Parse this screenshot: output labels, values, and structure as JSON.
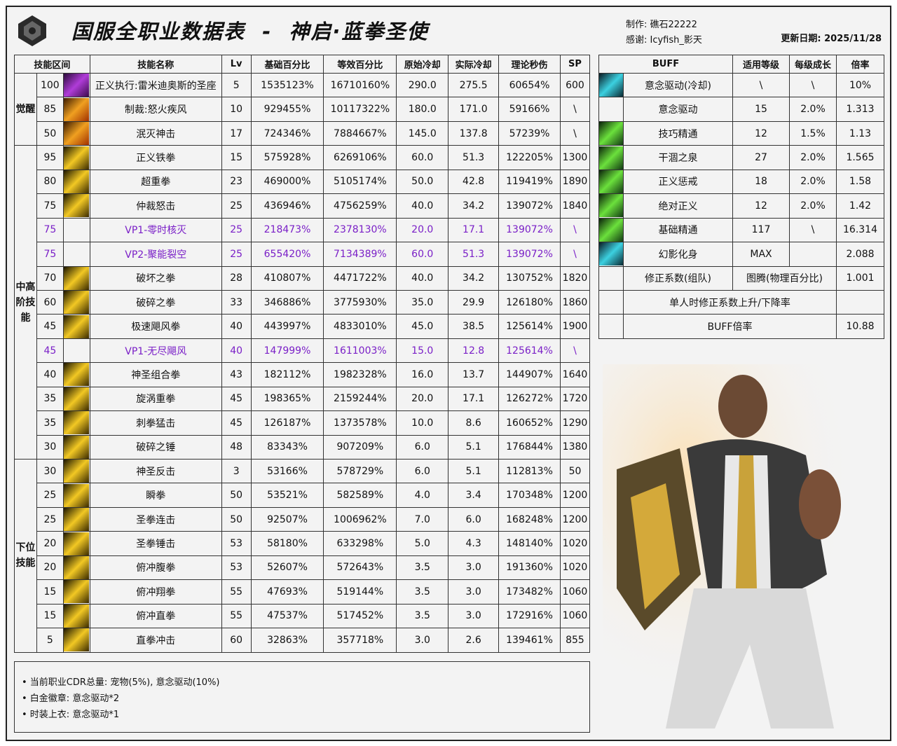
{
  "header": {
    "title": "国服全职业数据表  -  神启·蓝拳圣使",
    "author": "制作: 礁石22222",
    "thanks": "感谢: Icyfish_影天",
    "updated": "更新日期: 2025/11/28"
  },
  "skill_table": {
    "columns": [
      "技能区间",
      "技能名称",
      "Lv",
      "基础百分比",
      "等效百分比",
      "原始冷却",
      "实际冷却",
      "理论秒伤",
      "SP"
    ],
    "groups": [
      {
        "label": "觉醒",
        "rows": 3
      },
      {
        "label": "中高阶技能",
        "rows": 13
      },
      {
        "label": "下位技能",
        "rows": 9
      }
    ],
    "colors": {
      "vp": "#7a1fc7"
    },
    "rows": [
      {
        "lvl": "100",
        "name": "正义执行:雷米迪奥斯的圣座",
        "lv": "5",
        "base": "1535123%",
        "eq": "16710160%",
        "cd": "290.0",
        "acd": "275.5",
        "dps": "60654%",
        "sp": "600",
        "icon": "purple"
      },
      {
        "lvl": "85",
        "name": "制裁:怒火疾风",
        "lv": "10",
        "base": "929455%",
        "eq": "10117322%",
        "cd": "180.0",
        "acd": "171.0",
        "dps": "59166%",
        "sp": "\\",
        "icon": "orange"
      },
      {
        "lvl": "50",
        "name": "泯灭神击",
        "lv": "17",
        "base": "724346%",
        "eq": "7884667%",
        "cd": "145.0",
        "acd": "137.8",
        "dps": "57239%",
        "sp": "\\",
        "icon": "orange"
      },
      {
        "lvl": "95",
        "name": "正义铁拳",
        "lv": "15",
        "base": "575928%",
        "eq": "6269106%",
        "cd": "60.0",
        "acd": "51.3",
        "dps": "122205%",
        "sp": "1300",
        "icon": "gold"
      },
      {
        "lvl": "80",
        "name": "超重拳",
        "lv": "23",
        "base": "469000%",
        "eq": "5105174%",
        "cd": "50.0",
        "acd": "42.8",
        "dps": "119419%",
        "sp": "1890",
        "icon": "gold"
      },
      {
        "lvl": "75",
        "name": "仲裁怒击",
        "lv": "25",
        "base": "436946%",
        "eq": "4756259%",
        "cd": "40.0",
        "acd": "34.2",
        "dps": "139072%",
        "sp": "1840",
        "icon": "gold"
      },
      {
        "lvl": "75",
        "name": "VP1-零时核灭",
        "lv": "25",
        "base": "218473%",
        "eq": "2378130%",
        "cd": "20.0",
        "acd": "17.1",
        "dps": "139072%",
        "sp": "\\",
        "vp": true
      },
      {
        "lvl": "75",
        "name": "VP2-聚能裂空",
        "lv": "25",
        "base": "655420%",
        "eq": "7134389%",
        "cd": "60.0",
        "acd": "51.3",
        "dps": "139072%",
        "sp": "\\",
        "vp": true
      },
      {
        "lvl": "70",
        "name": "破坏之拳",
        "lv": "28",
        "base": "410807%",
        "eq": "4471722%",
        "cd": "40.0",
        "acd": "34.2",
        "dps": "130752%",
        "sp": "1820",
        "icon": "gold"
      },
      {
        "lvl": "60",
        "name": "破碎之拳",
        "lv": "33",
        "base": "346886%",
        "eq": "3775930%",
        "cd": "35.0",
        "acd": "29.9",
        "dps": "126180%",
        "sp": "1860",
        "icon": "gold"
      },
      {
        "lvl": "45",
        "name": "极速飓风拳",
        "lv": "40",
        "base": "443997%",
        "eq": "4833010%",
        "cd": "45.0",
        "acd": "38.5",
        "dps": "125614%",
        "sp": "1900",
        "icon": "gold"
      },
      {
        "lvl": "45",
        "name": "VP1-无尽飓风",
        "lv": "40",
        "base": "147999%",
        "eq": "1611003%",
        "cd": "15.0",
        "acd": "12.8",
        "dps": "125614%",
        "sp": "\\",
        "vp": true
      },
      {
        "lvl": "40",
        "name": "神圣组合拳",
        "lv": "43",
        "base": "182112%",
        "eq": "1982328%",
        "cd": "16.0",
        "acd": "13.7",
        "dps": "144907%",
        "sp": "1640",
        "icon": "gold"
      },
      {
        "lvl": "35",
        "name": "旋涡重拳",
        "lv": "45",
        "base": "198365%",
        "eq": "2159244%",
        "cd": "20.0",
        "acd": "17.1",
        "dps": "126272%",
        "sp": "1720",
        "icon": "gold"
      },
      {
        "lvl": "35",
        "name": "刺拳猛击",
        "lv": "45",
        "base": "126187%",
        "eq": "1373578%",
        "cd": "10.0",
        "acd": "8.6",
        "dps": "160652%",
        "sp": "1290",
        "icon": "gold"
      },
      {
        "lvl": "30",
        "name": "破碎之锤",
        "lv": "48",
        "base": "83343%",
        "eq": "907209%",
        "cd": "6.0",
        "acd": "5.1",
        "dps": "176844%",
        "sp": "1380",
        "icon": "gold"
      },
      {
        "lvl": "30",
        "name": "神圣反击",
        "lv": "3",
        "base": "53166%",
        "eq": "578729%",
        "cd": "6.0",
        "acd": "5.1",
        "dps": "112813%",
        "sp": "50",
        "icon": "gold"
      },
      {
        "lvl": "25",
        "name": "瞬拳",
        "lv": "50",
        "base": "53521%",
        "eq": "582589%",
        "cd": "4.0",
        "acd": "3.4",
        "dps": "170348%",
        "sp": "1200",
        "icon": "gold"
      },
      {
        "lvl": "25",
        "name": "圣拳连击",
        "lv": "50",
        "base": "92507%",
        "eq": "1006962%",
        "cd": "7.0",
        "acd": "6.0",
        "dps": "168248%",
        "sp": "1200",
        "icon": "gold"
      },
      {
        "lvl": "20",
        "name": "圣拳锤击",
        "lv": "53",
        "base": "58180%",
        "eq": "633298%",
        "cd": "5.0",
        "acd": "4.3",
        "dps": "148140%",
        "sp": "1020",
        "icon": "gold"
      },
      {
        "lvl": "20",
        "name": "俯冲腹拳",
        "lv": "53",
        "base": "52607%",
        "eq": "572643%",
        "cd": "3.5",
        "acd": "3.0",
        "dps": "191360%",
        "sp": "1020",
        "icon": "gold"
      },
      {
        "lvl": "15",
        "name": "俯冲翔拳",
        "lv": "55",
        "base": "47693%",
        "eq": "519144%",
        "cd": "3.5",
        "acd": "3.0",
        "dps": "173482%",
        "sp": "1060",
        "icon": "gold"
      },
      {
        "lvl": "15",
        "name": "俯冲直拳",
        "lv": "55",
        "base": "47537%",
        "eq": "517452%",
        "cd": "3.5",
        "acd": "3.0",
        "dps": "172916%",
        "sp": "1060",
        "icon": "gold"
      },
      {
        "lvl": "5",
        "name": "直拳冲击",
        "lv": "60",
        "base": "32863%",
        "eq": "357718%",
        "cd": "3.0",
        "acd": "2.6",
        "dps": "139461%",
        "sp": "855",
        "icon": "gold"
      }
    ]
  },
  "buff_table": {
    "columns": [
      "BUFF",
      "适用等级",
      "每级成长",
      "倍率"
    ],
    "rows": [
      {
        "name": "意念驱动(冷却)",
        "lvl": "\\",
        "growth": "\\",
        "rate": "10%",
        "icon": "cyan"
      },
      {
        "name": "意念驱动",
        "lvl": "15",
        "growth": "2.0%",
        "rate": "1.313",
        "icon": ""
      },
      {
        "name": "技巧精通",
        "lvl": "12",
        "growth": "1.5%",
        "rate": "1.13",
        "icon": "green"
      },
      {
        "name": "干涸之泉",
        "lvl": "27",
        "growth": "2.0%",
        "rate": "1.565",
        "icon": "green"
      },
      {
        "name": "正义惩戒",
        "lvl": "18",
        "growth": "2.0%",
        "rate": "1.58",
        "icon": "green"
      },
      {
        "name": "绝对正义",
        "lvl": "12",
        "growth": "2.0%",
        "rate": "1.42",
        "icon": "green"
      },
      {
        "name": "基础精通",
        "lvl": "117",
        "growth": "\\",
        "rate": "16.314",
        "icon": "green"
      },
      {
        "name": "幻影化身",
        "lvl": "MAX",
        "growth": "",
        "rate": "2.088",
        "icon": "cyan"
      }
    ],
    "correction": {
      "label": "修正系数(组队)",
      "source": "图腾(物理百分比)",
      "value": "1.001"
    },
    "solo": {
      "label": "单人时修正系数上升/下降率",
      "value": ""
    },
    "total": {
      "label": "BUFF倍率",
      "value": "10.88"
    }
  },
  "notes": [
    "• 当前职业CDR总量: 宠物(5%), 意念驱动(10%)",
    "• 白金徽章: 意念驱动*2",
    "• 时装上衣: 意念驱动*1"
  ]
}
